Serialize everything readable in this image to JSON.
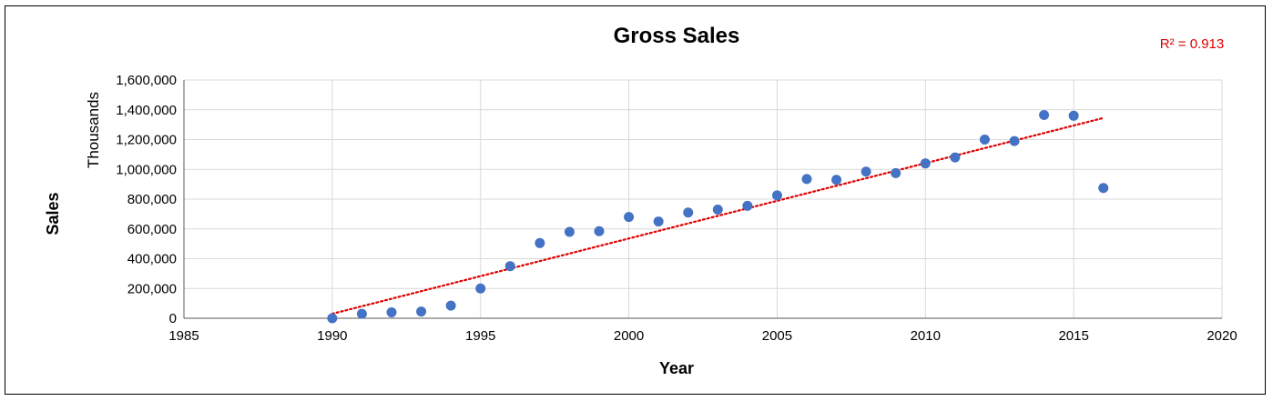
{
  "chart_data": {
    "type": "scatter",
    "title": "Gross Sales",
    "xlabel": "Year",
    "ylabel": "Sales",
    "y_unit_label": "Thousands",
    "xlim": [
      1985,
      2020
    ],
    "x_ticks": [
      1985,
      1990,
      1995,
      2000,
      2005,
      2010,
      2015,
      2020
    ],
    "ylim": [
      0,
      1600000
    ],
    "y_ticks": [
      0,
      200000,
      400000,
      600000,
      800000,
      1000000,
      1200000,
      1400000,
      1600000
    ],
    "y_tick_labels": [
      "0",
      "200,000",
      "400,000",
      "600,000",
      "800,000",
      "1,000,000",
      "1,200,000",
      "1,400,000",
      "1,600,000"
    ],
    "grid": true,
    "points": [
      {
        "x": 1990,
        "y": 0
      },
      {
        "x": 1991,
        "y": 30000
      },
      {
        "x": 1992,
        "y": 40000
      },
      {
        "x": 1993,
        "y": 45000
      },
      {
        "x": 1994,
        "y": 85000
      },
      {
        "x": 1995,
        "y": 200000
      },
      {
        "x": 1996,
        "y": 350000
      },
      {
        "x": 1997,
        "y": 505000
      },
      {
        "x": 1998,
        "y": 580000
      },
      {
        "x": 1999,
        "y": 585000
      },
      {
        "x": 2000,
        "y": 680000
      },
      {
        "x": 2001,
        "y": 650000
      },
      {
        "x": 2002,
        "y": 710000
      },
      {
        "x": 2003,
        "y": 730000
      },
      {
        "x": 2004,
        "y": 755000
      },
      {
        "x": 2005,
        "y": 825000
      },
      {
        "x": 2006,
        "y": 935000
      },
      {
        "x": 2007,
        "y": 930000
      },
      {
        "x": 2008,
        "y": 985000
      },
      {
        "x": 2009,
        "y": 975000
      },
      {
        "x": 2010,
        "y": 1040000
      },
      {
        "x": 2011,
        "y": 1080000
      },
      {
        "x": 2012,
        "y": 1200000
      },
      {
        "x": 2013,
        "y": 1190000
      },
      {
        "x": 2014,
        "y": 1365000
      },
      {
        "x": 2015,
        "y": 1360000
      },
      {
        "x": 2016,
        "y": 875000
      }
    ],
    "trendline": {
      "type": "linear",
      "x": [
        1990,
        2016
      ],
      "y": [
        30000,
        1345000
      ],
      "r_squared_label": "R² = 0.913"
    },
    "colors": {
      "marker": "#4472C4",
      "trendline": "#E00000",
      "r2_text": "#E00000",
      "grid": "#D9D9D9"
    }
  }
}
